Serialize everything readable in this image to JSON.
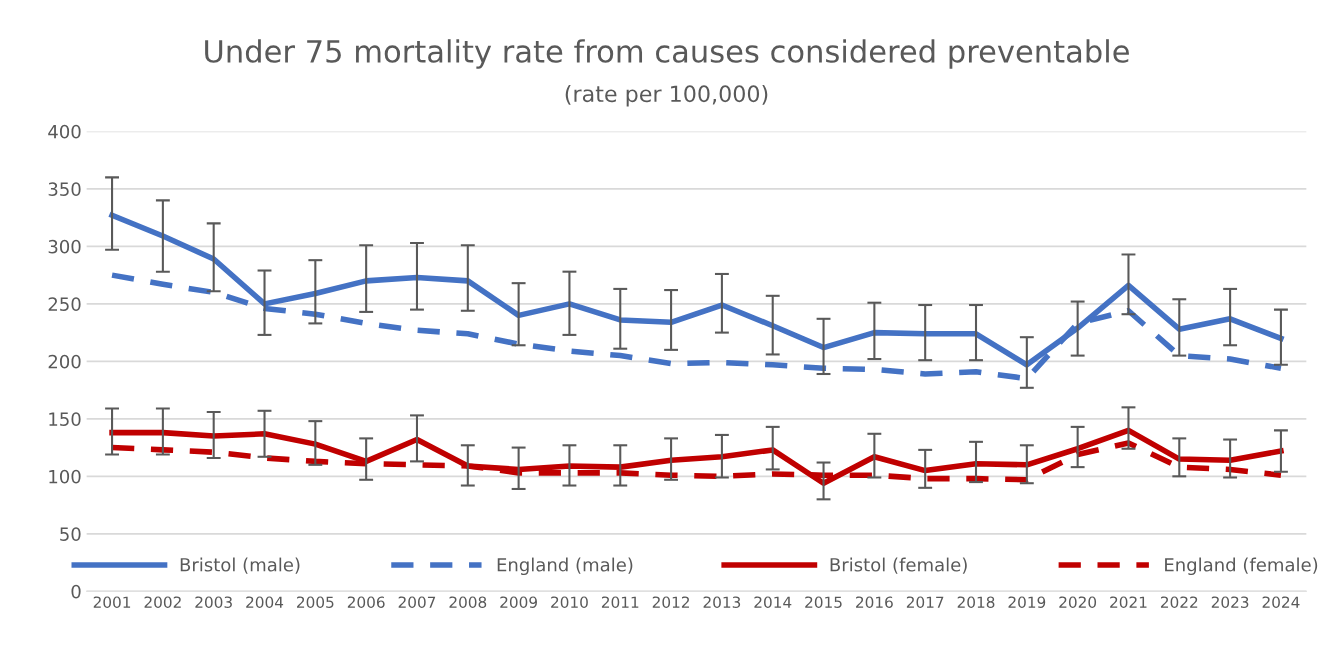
{
  "chart_data": {
    "type": "line",
    "title": "Under 75 mortality rate from causes considered preventable",
    "subtitle": "(rate per 100,000)",
    "categories": [
      "2001",
      "2002",
      "2003",
      "2004",
      "2005",
      "2006",
      "2007",
      "2008",
      "2009",
      "2010",
      "2011",
      "2012",
      "2013",
      "2014",
      "2015",
      "2016",
      "2017",
      "2018",
      "2019",
      "2020",
      "2021",
      "2022",
      "2023",
      "2024"
    ],
    "ylim": [
      0,
      400
    ],
    "yticks": [
      0,
      50,
      100,
      150,
      200,
      250,
      300,
      350,
      400
    ],
    "grid": "y",
    "legend": "bottom",
    "marker": "none",
    "series": [
      {
        "name": "Bristol (male)",
        "color": "#4472c4",
        "line_style": "solid",
        "values": [
          327,
          309,
          289,
          250,
          259,
          270,
          273,
          270,
          240,
          250,
          236,
          234,
          249,
          231,
          212,
          225,
          224,
          224,
          197,
          229,
          266,
          228,
          237,
          220
        ],
        "errors": [
          [
            297,
            360
          ],
          [
            278,
            340
          ],
          [
            261,
            320
          ],
          [
            223,
            279
          ],
          [
            233,
            288
          ],
          [
            243,
            301
          ],
          [
            245,
            303
          ],
          [
            244,
            301
          ],
          [
            214,
            268
          ],
          [
            223,
            278
          ],
          [
            211,
            263
          ],
          [
            210,
            262
          ],
          [
            225,
            276
          ],
          [
            206,
            257
          ],
          [
            189,
            237
          ],
          [
            202,
            251
          ],
          [
            201,
            249
          ],
          [
            201,
            249
          ],
          [
            177,
            221
          ],
          [
            205,
            252
          ],
          [
            241,
            293
          ],
          [
            205,
            254
          ],
          [
            214,
            263
          ],
          [
            197,
            245
          ]
        ]
      },
      {
        "name": "England (male)",
        "color": "#4472c4",
        "line_style": "dashed",
        "values": [
          275,
          267,
          260,
          246,
          241,
          233,
          227,
          224,
          215,
          209,
          205,
          198,
          199,
          197,
          194,
          193,
          189,
          191,
          185,
          233,
          244,
          205,
          202,
          194
        ]
      },
      {
        "name": "Bristol (female)",
        "color": "#c00000",
        "line_style": "solid",
        "values": [
          138,
          138,
          135,
          137,
          128,
          113,
          132,
          109,
          106,
          109,
          108,
          114,
          117,
          123,
          94,
          117,
          105,
          111,
          110,
          124,
          140,
          115,
          114,
          122
        ],
        "errors": [
          [
            119,
            159
          ],
          [
            119,
            159
          ],
          [
            116,
            156
          ],
          [
            117,
            157
          ],
          [
            110,
            148
          ],
          [
            97,
            133
          ],
          [
            113,
            153
          ],
          [
            92,
            127
          ],
          [
            89,
            125
          ],
          [
            92,
            127
          ],
          [
            92,
            127
          ],
          [
            97,
            133
          ],
          [
            99,
            136
          ],
          [
            106,
            143
          ],
          [
            80,
            112
          ],
          [
            99,
            137
          ],
          [
            90,
            123
          ],
          [
            95,
            130
          ],
          [
            94,
            127
          ],
          [
            108,
            143
          ],
          [
            124,
            160
          ],
          [
            100,
            133
          ],
          [
            99,
            132
          ],
          [
            104,
            140
          ]
        ]
      },
      {
        "name": "England (female)",
        "color": "#c00000",
        "line_style": "dashed",
        "values": [
          125,
          123,
          121,
          116,
          113,
          111,
          110,
          109,
          103,
          103,
          103,
          101,
          100,
          102,
          101,
          101,
          98,
          98,
          97,
          119,
          129,
          108,
          106,
          101
        ]
      }
    ]
  }
}
